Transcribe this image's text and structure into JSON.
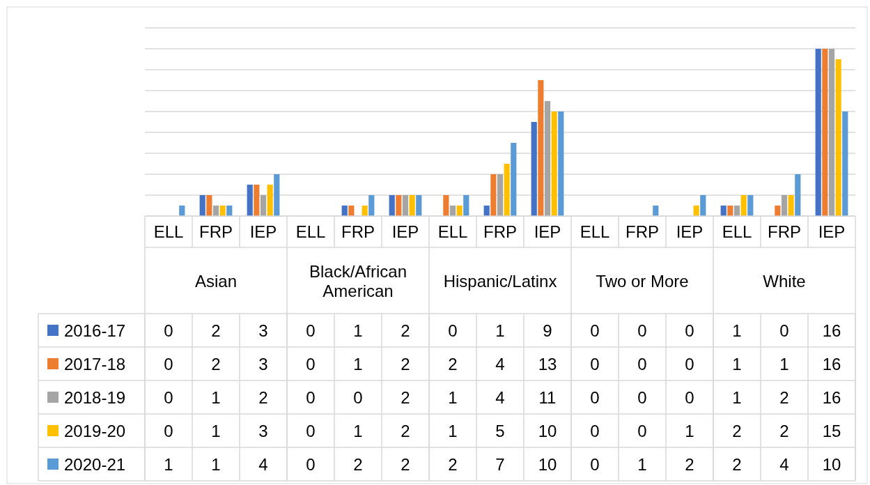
{
  "chart_data": {
    "type": "bar",
    "categories": [
      "ELL",
      "FRP",
      "IEP",
      "ELL",
      "FRP",
      "IEP",
      "ELL",
      "FRP",
      "IEP",
      "ELL",
      "FRP",
      "IEP",
      "ELL",
      "FRP",
      "IEP"
    ],
    "annotations": [
      "Asian",
      "Black/African American",
      "Hispanic/Latinx",
      "Two or More",
      "White"
    ],
    "series": [
      {
        "name": "2016-17",
        "color": "#4472c4",
        "values": [
          0,
          2,
          3,
          0,
          1,
          2,
          0,
          1,
          9,
          0,
          0,
          0,
          1,
          0,
          16
        ]
      },
      {
        "name": "2017-18",
        "color": "#ed7d31",
        "values": [
          0,
          2,
          3,
          0,
          1,
          2,
          2,
          4,
          13,
          0,
          0,
          0,
          1,
          1,
          16
        ]
      },
      {
        "name": "2018-19",
        "color": "#a5a5a5",
        "values": [
          0,
          1,
          2,
          0,
          0,
          2,
          1,
          4,
          11,
          0,
          0,
          0,
          1,
          2,
          16
        ]
      },
      {
        "name": "2019-20",
        "color": "#ffc000",
        "values": [
          0,
          1,
          3,
          0,
          1,
          2,
          1,
          5,
          10,
          0,
          0,
          1,
          2,
          2,
          15
        ]
      },
      {
        "name": "2020-21",
        "color": "#5b9bd5",
        "values": [
          1,
          1,
          4,
          0,
          2,
          2,
          2,
          7,
          10,
          0,
          1,
          2,
          2,
          4,
          10
        ]
      }
    ],
    "ylim": [
      0,
      18
    ],
    "yticks": [
      {
        "value": 0,
        "label": null
      },
      {
        "value": 2,
        "label": null
      },
      {
        "value": 4,
        "label": null
      },
      {
        "value": 6,
        "label": null
      },
      {
        "value": 8,
        "label": null
      },
      {
        "value": 10,
        "label": null
      },
      {
        "value": 12,
        "label": null
      },
      {
        "value": 14,
        "label": null
      },
      {
        "value": 16,
        "label": null
      },
      {
        "value": 18,
        "label": null
      }
    ],
    "tick_labels": "x",
    "grid": "y",
    "data_labels": true,
    "legend": "bottom left"
  }
}
